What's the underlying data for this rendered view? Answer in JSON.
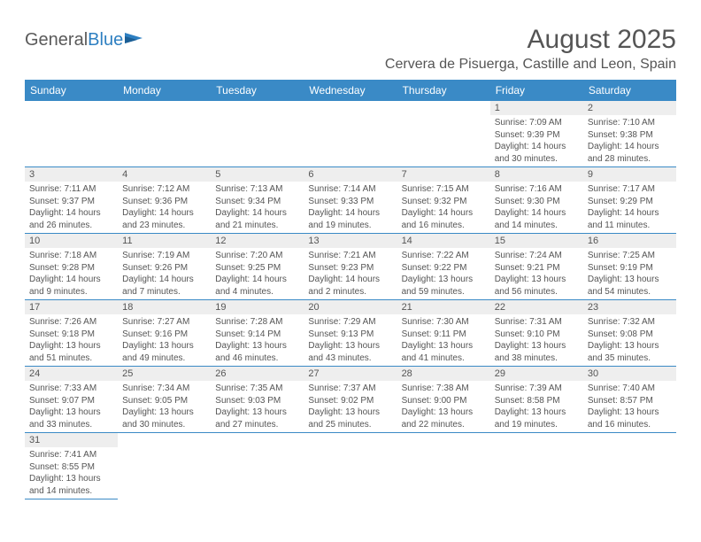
{
  "logo": {
    "part1": "General",
    "part2": "Blue"
  },
  "title": "August 2025",
  "location": "Cervera de Pisuerga, Castille and Leon, Spain",
  "colors": {
    "header_bg": "#3a8ac6",
    "header_text": "#ffffff",
    "daynum_bg": "#eeeeee",
    "text": "#555555",
    "border": "#3a8ac6"
  },
  "weekdays": [
    "Sunday",
    "Monday",
    "Tuesday",
    "Wednesday",
    "Thursday",
    "Friday",
    "Saturday"
  ],
  "weeks": [
    [
      null,
      null,
      null,
      null,
      null,
      {
        "n": "1",
        "sunrise": "Sunrise: 7:09 AM",
        "sunset": "Sunset: 9:39 PM",
        "day1": "Daylight: 14 hours",
        "day2": "and 30 minutes."
      },
      {
        "n": "2",
        "sunrise": "Sunrise: 7:10 AM",
        "sunset": "Sunset: 9:38 PM",
        "day1": "Daylight: 14 hours",
        "day2": "and 28 minutes."
      }
    ],
    [
      {
        "n": "3",
        "sunrise": "Sunrise: 7:11 AM",
        "sunset": "Sunset: 9:37 PM",
        "day1": "Daylight: 14 hours",
        "day2": "and 26 minutes."
      },
      {
        "n": "4",
        "sunrise": "Sunrise: 7:12 AM",
        "sunset": "Sunset: 9:36 PM",
        "day1": "Daylight: 14 hours",
        "day2": "and 23 minutes."
      },
      {
        "n": "5",
        "sunrise": "Sunrise: 7:13 AM",
        "sunset": "Sunset: 9:34 PM",
        "day1": "Daylight: 14 hours",
        "day2": "and 21 minutes."
      },
      {
        "n": "6",
        "sunrise": "Sunrise: 7:14 AM",
        "sunset": "Sunset: 9:33 PM",
        "day1": "Daylight: 14 hours",
        "day2": "and 19 minutes."
      },
      {
        "n": "7",
        "sunrise": "Sunrise: 7:15 AM",
        "sunset": "Sunset: 9:32 PM",
        "day1": "Daylight: 14 hours",
        "day2": "and 16 minutes."
      },
      {
        "n": "8",
        "sunrise": "Sunrise: 7:16 AM",
        "sunset": "Sunset: 9:30 PM",
        "day1": "Daylight: 14 hours",
        "day2": "and 14 minutes."
      },
      {
        "n": "9",
        "sunrise": "Sunrise: 7:17 AM",
        "sunset": "Sunset: 9:29 PM",
        "day1": "Daylight: 14 hours",
        "day2": "and 11 minutes."
      }
    ],
    [
      {
        "n": "10",
        "sunrise": "Sunrise: 7:18 AM",
        "sunset": "Sunset: 9:28 PM",
        "day1": "Daylight: 14 hours",
        "day2": "and 9 minutes."
      },
      {
        "n": "11",
        "sunrise": "Sunrise: 7:19 AM",
        "sunset": "Sunset: 9:26 PM",
        "day1": "Daylight: 14 hours",
        "day2": "and 7 minutes."
      },
      {
        "n": "12",
        "sunrise": "Sunrise: 7:20 AM",
        "sunset": "Sunset: 9:25 PM",
        "day1": "Daylight: 14 hours",
        "day2": "and 4 minutes."
      },
      {
        "n": "13",
        "sunrise": "Sunrise: 7:21 AM",
        "sunset": "Sunset: 9:23 PM",
        "day1": "Daylight: 14 hours",
        "day2": "and 2 minutes."
      },
      {
        "n": "14",
        "sunrise": "Sunrise: 7:22 AM",
        "sunset": "Sunset: 9:22 PM",
        "day1": "Daylight: 13 hours",
        "day2": "and 59 minutes."
      },
      {
        "n": "15",
        "sunrise": "Sunrise: 7:24 AM",
        "sunset": "Sunset: 9:21 PM",
        "day1": "Daylight: 13 hours",
        "day2": "and 56 minutes."
      },
      {
        "n": "16",
        "sunrise": "Sunrise: 7:25 AM",
        "sunset": "Sunset: 9:19 PM",
        "day1": "Daylight: 13 hours",
        "day2": "and 54 minutes."
      }
    ],
    [
      {
        "n": "17",
        "sunrise": "Sunrise: 7:26 AM",
        "sunset": "Sunset: 9:18 PM",
        "day1": "Daylight: 13 hours",
        "day2": "and 51 minutes."
      },
      {
        "n": "18",
        "sunrise": "Sunrise: 7:27 AM",
        "sunset": "Sunset: 9:16 PM",
        "day1": "Daylight: 13 hours",
        "day2": "and 49 minutes."
      },
      {
        "n": "19",
        "sunrise": "Sunrise: 7:28 AM",
        "sunset": "Sunset: 9:14 PM",
        "day1": "Daylight: 13 hours",
        "day2": "and 46 minutes."
      },
      {
        "n": "20",
        "sunrise": "Sunrise: 7:29 AM",
        "sunset": "Sunset: 9:13 PM",
        "day1": "Daylight: 13 hours",
        "day2": "and 43 minutes."
      },
      {
        "n": "21",
        "sunrise": "Sunrise: 7:30 AM",
        "sunset": "Sunset: 9:11 PM",
        "day1": "Daylight: 13 hours",
        "day2": "and 41 minutes."
      },
      {
        "n": "22",
        "sunrise": "Sunrise: 7:31 AM",
        "sunset": "Sunset: 9:10 PM",
        "day1": "Daylight: 13 hours",
        "day2": "and 38 minutes."
      },
      {
        "n": "23",
        "sunrise": "Sunrise: 7:32 AM",
        "sunset": "Sunset: 9:08 PM",
        "day1": "Daylight: 13 hours",
        "day2": "and 35 minutes."
      }
    ],
    [
      {
        "n": "24",
        "sunrise": "Sunrise: 7:33 AM",
        "sunset": "Sunset: 9:07 PM",
        "day1": "Daylight: 13 hours",
        "day2": "and 33 minutes."
      },
      {
        "n": "25",
        "sunrise": "Sunrise: 7:34 AM",
        "sunset": "Sunset: 9:05 PM",
        "day1": "Daylight: 13 hours",
        "day2": "and 30 minutes."
      },
      {
        "n": "26",
        "sunrise": "Sunrise: 7:35 AM",
        "sunset": "Sunset: 9:03 PM",
        "day1": "Daylight: 13 hours",
        "day2": "and 27 minutes."
      },
      {
        "n": "27",
        "sunrise": "Sunrise: 7:37 AM",
        "sunset": "Sunset: 9:02 PM",
        "day1": "Daylight: 13 hours",
        "day2": "and 25 minutes."
      },
      {
        "n": "28",
        "sunrise": "Sunrise: 7:38 AM",
        "sunset": "Sunset: 9:00 PM",
        "day1": "Daylight: 13 hours",
        "day2": "and 22 minutes."
      },
      {
        "n": "29",
        "sunrise": "Sunrise: 7:39 AM",
        "sunset": "Sunset: 8:58 PM",
        "day1": "Daylight: 13 hours",
        "day2": "and 19 minutes."
      },
      {
        "n": "30",
        "sunrise": "Sunrise: 7:40 AM",
        "sunset": "Sunset: 8:57 PM",
        "day1": "Daylight: 13 hours",
        "day2": "and 16 minutes."
      }
    ],
    [
      {
        "n": "31",
        "sunrise": "Sunrise: 7:41 AM",
        "sunset": "Sunset: 8:55 PM",
        "day1": "Daylight: 13 hours",
        "day2": "and 14 minutes."
      },
      null,
      null,
      null,
      null,
      null,
      null
    ]
  ]
}
